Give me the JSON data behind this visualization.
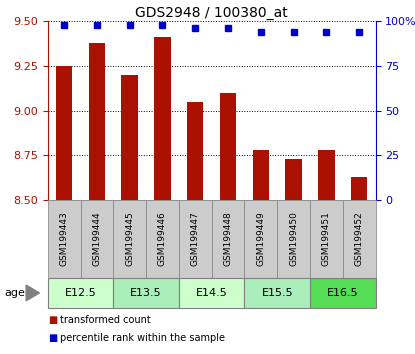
{
  "title": "GDS2948 / 100380_at",
  "samples": [
    "GSM199443",
    "GSM199444",
    "GSM199445",
    "GSM199446",
    "GSM199447",
    "GSM199448",
    "GSM199449",
    "GSM199450",
    "GSM199451",
    "GSM199452"
  ],
  "red_values": [
    9.25,
    9.38,
    9.2,
    9.41,
    9.05,
    9.1,
    8.78,
    8.73,
    8.78,
    8.63
  ],
  "blue_values": [
    98,
    98,
    98,
    98,
    96,
    96,
    94,
    94,
    94,
    94
  ],
  "ylim_left": [
    8.5,
    9.5
  ],
  "ylim_right": [
    0,
    100
  ],
  "yticks_left": [
    8.5,
    8.75,
    9.0,
    9.25,
    9.5
  ],
  "yticks_right": [
    0,
    25,
    50,
    75,
    100
  ],
  "age_groups": [
    {
      "label": "E12.5",
      "start": 0,
      "end": 2,
      "color": "#ccffcc"
    },
    {
      "label": "E13.5",
      "start": 2,
      "end": 4,
      "color": "#aaeebb"
    },
    {
      "label": "E14.5",
      "start": 4,
      "end": 6,
      "color": "#ccffcc"
    },
    {
      "label": "E15.5",
      "start": 6,
      "end": 8,
      "color": "#aaeebb"
    },
    {
      "label": "E16.5",
      "start": 8,
      "end": 10,
      "color": "#55dd55"
    }
  ],
  "bar_color": "#aa1100",
  "dot_color": "#0000cc",
  "background_color": "#ffffff",
  "sample_bg": "#cccccc",
  "legend_labels": [
    "transformed count",
    "percentile rank within the sample"
  ],
  "bar_width": 0.5
}
